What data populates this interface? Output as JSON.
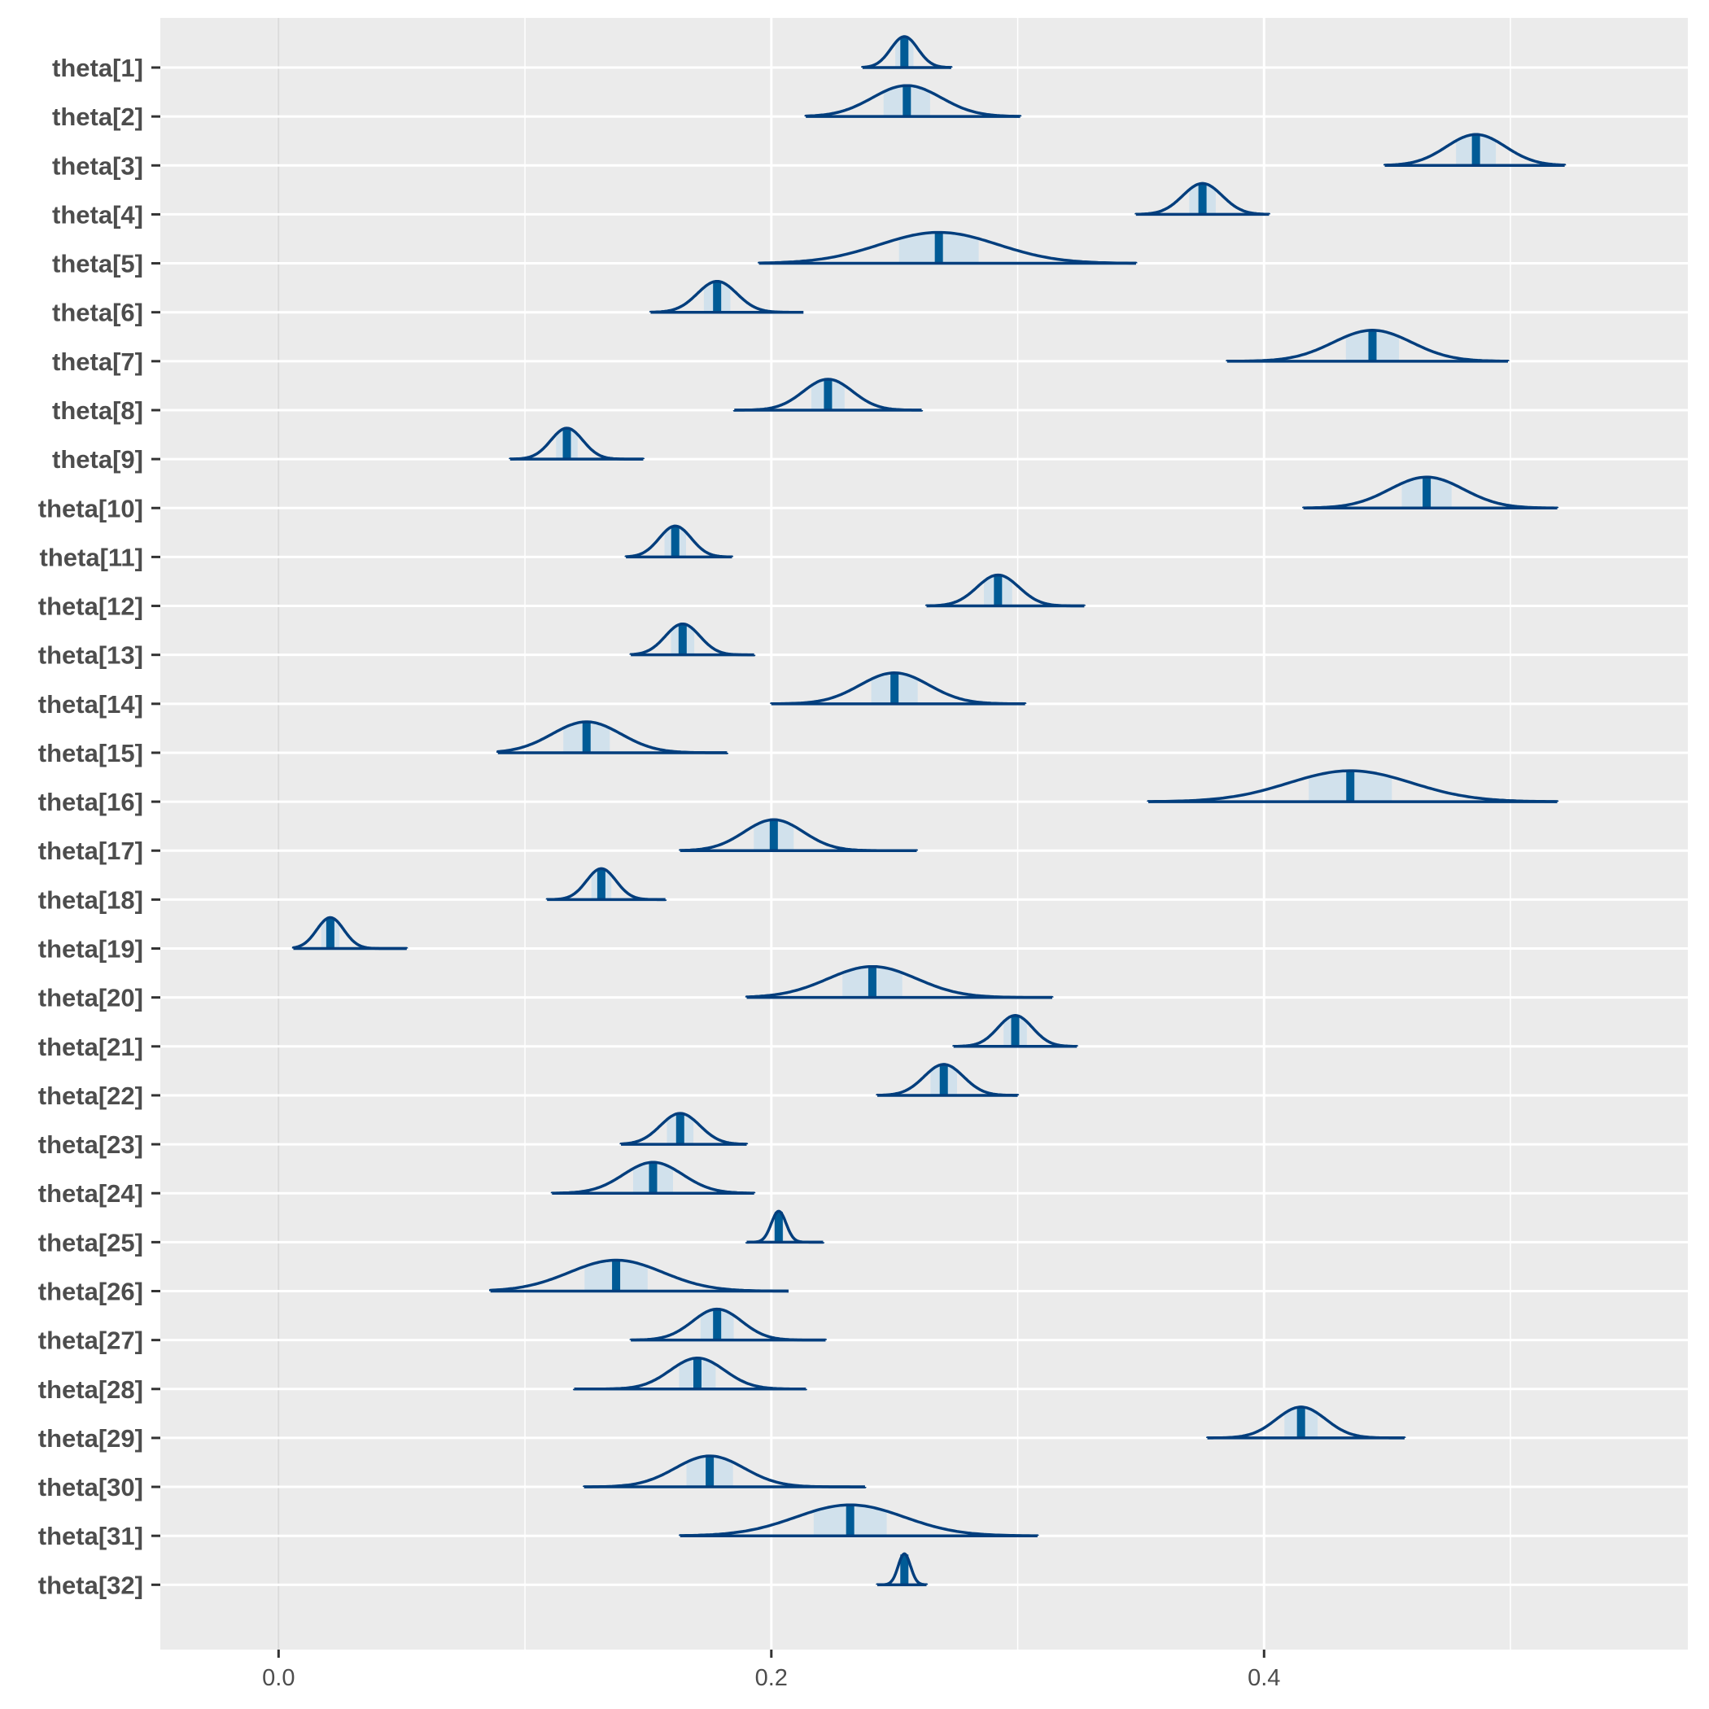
{
  "chart_data": {
    "type": "ridgeline",
    "xlabel": "",
    "ylabel": "",
    "xlim": [
      -0.048,
      0.572
    ],
    "xticks": [
      0.0,
      0.2,
      0.4
    ],
    "xtick_labels": [
      "0.0",
      "0.2",
      "0.4"
    ],
    "x_minor_gridlines": [
      0.1,
      0.3,
      0.5
    ],
    "vline": 0.0,
    "grid": true,
    "colors": {
      "background": "#ffffff",
      "panel": "#ebebeb",
      "grid": "#ffffff",
      "vline": "#dcdcdc",
      "outline": "#023e7d",
      "fill": "#d1e1ec",
      "median": "#005b96",
      "ticks": "#333333",
      "text": "#4d4d4d"
    },
    "parameters": [
      {
        "label": "theta[1]",
        "median": 0.254,
        "sd": 0.0055,
        "min": 0.237,
        "max": 0.273
      },
      {
        "label": "theta[2]",
        "median": 0.255,
        "sd": 0.014,
        "min": 0.214,
        "max": 0.301
      },
      {
        "label": "theta[3]",
        "median": 0.486,
        "sd": 0.012,
        "min": 0.449,
        "max": 0.522
      },
      {
        "label": "theta[4]",
        "median": 0.375,
        "sd": 0.008,
        "min": 0.348,
        "max": 0.402
      },
      {
        "label": "theta[5]",
        "median": 0.268,
        "sd": 0.024,
        "min": 0.195,
        "max": 0.348
      },
      {
        "label": "theta[6]",
        "median": 0.178,
        "sd": 0.008,
        "min": 0.151,
        "max": 0.213
      },
      {
        "label": "theta[7]",
        "median": 0.444,
        "sd": 0.016,
        "min": 0.385,
        "max": 0.499
      },
      {
        "label": "theta[8]",
        "median": 0.223,
        "sd": 0.01,
        "min": 0.185,
        "max": 0.261
      },
      {
        "label": "theta[9]",
        "median": 0.117,
        "sd": 0.0065,
        "min": 0.094,
        "max": 0.148
      },
      {
        "label": "theta[10]",
        "median": 0.466,
        "sd": 0.015,
        "min": 0.416,
        "max": 0.519
      },
      {
        "label": "theta[11]",
        "median": 0.161,
        "sd": 0.0065,
        "min": 0.141,
        "max": 0.184
      },
      {
        "label": "theta[12]",
        "median": 0.292,
        "sd": 0.0085,
        "min": 0.263,
        "max": 0.327
      },
      {
        "label": "theta[13]",
        "median": 0.164,
        "sd": 0.007,
        "min": 0.143,
        "max": 0.193
      },
      {
        "label": "theta[14]",
        "median": 0.25,
        "sd": 0.014,
        "min": 0.2,
        "max": 0.303
      },
      {
        "label": "theta[15]",
        "median": 0.125,
        "sd": 0.014,
        "min": 0.089,
        "max": 0.182
      },
      {
        "label": "theta[16]",
        "median": 0.435,
        "sd": 0.025,
        "min": 0.353,
        "max": 0.519
      },
      {
        "label": "theta[17]",
        "median": 0.201,
        "sd": 0.012,
        "min": 0.163,
        "max": 0.259
      },
      {
        "label": "theta[18]",
        "median": 0.131,
        "sd": 0.006,
        "min": 0.109,
        "max": 0.157
      },
      {
        "label": "theta[19]",
        "median": 0.021,
        "sd": 0.0055,
        "min": 0.006,
        "max": 0.052
      },
      {
        "label": "theta[20]",
        "median": 0.241,
        "sd": 0.018,
        "min": 0.19,
        "max": 0.314
      },
      {
        "label": "theta[21]",
        "median": 0.299,
        "sd": 0.007,
        "min": 0.274,
        "max": 0.324
      },
      {
        "label": "theta[22]",
        "median": 0.27,
        "sd": 0.008,
        "min": 0.243,
        "max": 0.3
      },
      {
        "label": "theta[23]",
        "median": 0.163,
        "sd": 0.008,
        "min": 0.139,
        "max": 0.19
      },
      {
        "label": "theta[24]",
        "median": 0.152,
        "sd": 0.012,
        "min": 0.111,
        "max": 0.193
      },
      {
        "label": "theta[25]",
        "median": 0.203,
        "sd": 0.003,
        "min": 0.19,
        "max": 0.221
      },
      {
        "label": "theta[26]",
        "median": 0.137,
        "sd": 0.019,
        "min": 0.086,
        "max": 0.207
      },
      {
        "label": "theta[27]",
        "median": 0.178,
        "sd": 0.01,
        "min": 0.143,
        "max": 0.222
      },
      {
        "label": "theta[28]",
        "median": 0.17,
        "sd": 0.011,
        "min": 0.12,
        "max": 0.214
      },
      {
        "label": "theta[29]",
        "median": 0.415,
        "sd": 0.01,
        "min": 0.377,
        "max": 0.457
      },
      {
        "label": "theta[30]",
        "median": 0.175,
        "sd": 0.014,
        "min": 0.124,
        "max": 0.238
      },
      {
        "label": "theta[31]",
        "median": 0.232,
        "sd": 0.022,
        "min": 0.163,
        "max": 0.308
      },
      {
        "label": "theta[32]",
        "median": 0.254,
        "sd": 0.0025,
        "min": 0.243,
        "max": 0.263
      }
    ]
  }
}
